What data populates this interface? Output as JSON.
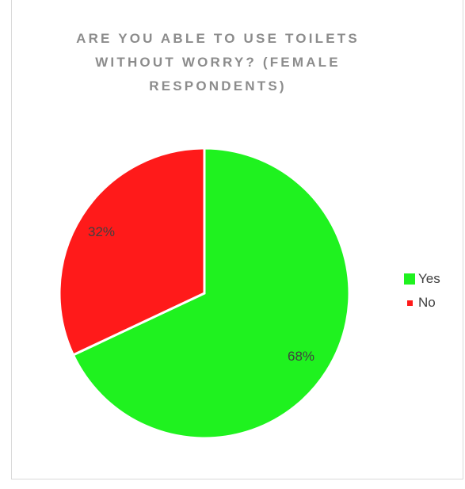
{
  "chart_data": {
    "type": "pie",
    "title": "ARE YOU ABLE TO USE TOILETS\nWITHOUT WORRY? (FEMALE\nRESPONDENTS)",
    "categories": [
      "Yes",
      "No"
    ],
    "values": [
      68,
      32
    ],
    "data_labels": [
      "68%",
      "32%"
    ],
    "colors": [
      "#1ff21f",
      "#ff1a1a"
    ],
    "legend": {
      "placement": "right",
      "entries": [
        "Yes",
        "No"
      ]
    }
  }
}
